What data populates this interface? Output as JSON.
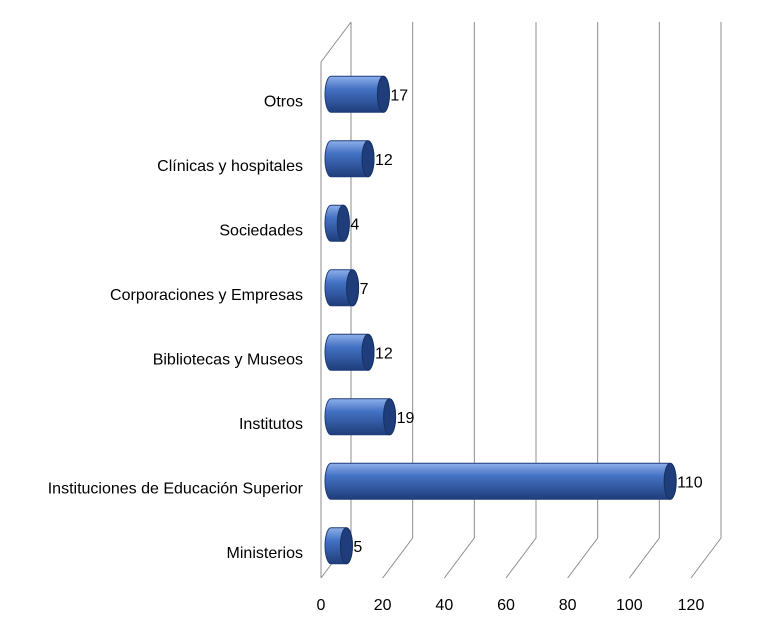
{
  "chart_data": {
    "type": "bar",
    "orientation": "horizontal",
    "style": "3d-cylinder",
    "categories": [
      "Ministerios",
      "Instituciones de Educación Superior",
      "Institutos",
      "Bibliotecas y Museos",
      "Corporaciones y Empresas",
      "Sociedades",
      "Clínicas y hospitales",
      "Otros"
    ],
    "values": [
      5,
      110,
      19,
      12,
      7,
      4,
      12,
      17
    ],
    "value_labels": [
      "5",
      "110",
      "19",
      "12",
      "7",
      "4",
      "12",
      "17"
    ],
    "xticks": [
      0,
      20,
      40,
      60,
      80,
      100,
      120
    ],
    "xtick_labels": [
      "0",
      "20",
      "40",
      "60",
      "80",
      "100",
      "120"
    ],
    "xlim": [
      0,
      120
    ],
    "grid": true,
    "legend": "none",
    "title": "",
    "xlabel": "",
    "ylabel": "",
    "colors": {
      "bar": "#4472c4",
      "bar_dark": "#1f3d7a",
      "bar_light": "#8fb0ea",
      "grid": "#8c8c8c"
    }
  }
}
